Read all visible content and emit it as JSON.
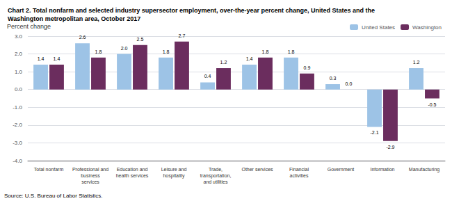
{
  "chart_data": {
    "type": "bar",
    "title": "Chart 2. Total nonfarm and selected industry supersector employment, over-the-year percent change, United States and the\nWashington metropolitan area, October 2017",
    "ylabel": "Percent change",
    "source": "Source: U.S. Bureau of Labor Statistics.",
    "categories": [
      "Total nonfarm",
      "Professional and\nbusiness\nservices",
      "Education and\nhealth services",
      "Leisure and\nhospitality",
      "Trade,\ntransportation,\nand utilities",
      "Other services",
      "Financial\nactivities",
      "Government",
      "Information",
      "Manufacturing"
    ],
    "series": [
      {
        "name": "United States",
        "color": "#9DC3E6",
        "values": [
          1.4,
          2.6,
          2.0,
          1.8,
          0.4,
          1.4,
          1.8,
          0.3,
          -2.1,
          1.2
        ],
        "value_labels": [
          "1.4",
          "2.6",
          "2.0",
          "1.8",
          "0.4",
          "1.4",
          "1.8",
          "0.3",
          "-2.1",
          "1.2"
        ]
      },
      {
        "name": "Washington",
        "color": "#6B2D5E",
        "values": [
          1.4,
          1.8,
          2.5,
          2.7,
          1.2,
          1.8,
          0.9,
          0.0,
          -2.9,
          -0.5
        ],
        "value_labels": [
          "1.4",
          "1.8",
          "2.5",
          "2.7",
          "1.2",
          "1.8",
          "0.9",
          "0.0",
          "-2.9",
          "-0.5"
        ]
      }
    ],
    "ylim": [
      -4.0,
      3.0
    ],
    "yticks": [
      {
        "value": -4.0,
        "label": "-4.0"
      },
      {
        "value": -3.0,
        "label": "-3.0"
      },
      {
        "value": -2.0,
        "label": "-2.0"
      },
      {
        "value": -1.0,
        "label": "-1.0"
      },
      {
        "value": 0.0,
        "label": "0.0"
      },
      {
        "value": 1.0,
        "label": "1.0"
      },
      {
        "value": 2.0,
        "label": "2.0"
      },
      {
        "value": 3.0,
        "label": "3.0"
      }
    ],
    "grid": true,
    "legend": "upper right",
    "data_labels": true
  }
}
